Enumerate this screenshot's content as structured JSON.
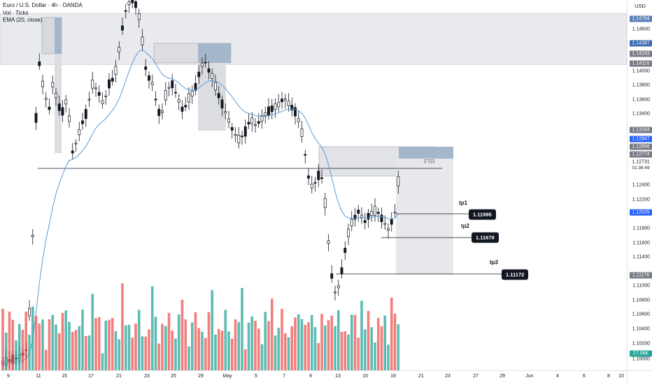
{
  "header": {
    "title": "Euro / U.S. Dollar · 4h · OANDA",
    "indicator_vol": "Vol · Ticks",
    "indicator_ema": "EMA (20, close)"
  },
  "price_axis": {
    "currency": "USD",
    "labels": [
      "1.14600",
      "1.14000",
      "1.13800",
      "1.13600",
      "1.13400",
      "1.12400",
      "1.12200",
      "1.11800",
      "1.11600",
      "1.11400",
      "1.11000",
      "1.10800",
      "1.10600",
      "1.10400",
      "1.10200",
      "1.10000"
    ],
    "badges": [
      {
        "value": "1.14764",
        "color": "#5b7fb8"
      },
      {
        "value": "1.14397",
        "color": "#3d6eb4"
      },
      {
        "value": "1.14243",
        "color": "#787b86"
      },
      {
        "value": "1.14110",
        "color": "#787b86"
      },
      {
        "value": "1.13164",
        "color": "#787b86"
      },
      {
        "value": "1.12947",
        "color": "#2962ff"
      },
      {
        "value": "1.12856",
        "color": "#787b86"
      },
      {
        "value": "1.12774",
        "color": "#787b86"
      },
      {
        "value": "1.12025",
        "color": "#2962ff"
      },
      {
        "value": "1.11176",
        "color": "#787b86"
      },
      {
        "value": "27.06K",
        "color": "#26a69a"
      }
    ],
    "current_price": "1.12731",
    "countdown": "01:36:49"
  },
  "time_axis": {
    "labels": [
      "9",
      "11",
      "15",
      "17",
      "21",
      "23",
      "25",
      "29",
      "May",
      "5",
      "7",
      "9",
      "13",
      "15",
      "19",
      "21",
      "23",
      "27",
      "29",
      "Jun",
      "4",
      "6",
      "8",
      "10"
    ]
  },
  "annotations": {
    "ftr": "FTR",
    "tp1": "tp1",
    "tp2": "tp2",
    "tp3": "tp3",
    "tp1_value": "1.11995",
    "tp2_value": "1.11679",
    "tp3_value": "1.11172"
  },
  "colors": {
    "bull_volume": "#26a69a",
    "bear_volume": "#ef5350",
    "candle": "#131722",
    "ema": "#5b9bd5",
    "zone_grey": "#d1d4dc",
    "zone_blue": "#7c9ab5"
  },
  "chart_data": {
    "type": "candlestick",
    "symbol": "EURUSD",
    "timeframe": "4h",
    "ylim": [
      1.1,
      1.15
    ],
    "keypoints": [
      {
        "x": "Apr 9",
        "y": 1.1
      },
      {
        "x": "Apr 10",
        "y": 1.105
      },
      {
        "x": "Apr 11",
        "y": 1.138
      },
      {
        "x": "Apr 14",
        "y": 1.133
      },
      {
        "x": "Apr 16",
        "y": 1.129
      },
      {
        "x": "Apr 21",
        "y": 1.156
      },
      {
        "x": "Apr 22",
        "y": 1.143
      },
      {
        "x": "Apr 23",
        "y": 1.134
      },
      {
        "x": "Apr 29",
        "y": 1.142
      },
      {
        "x": "Apr 30",
        "y": 1.134
      },
      {
        "x": "May 2",
        "y": 1.13
      },
      {
        "x": "May 6",
        "y": 1.137
      },
      {
        "x": "May 8",
        "y": 1.13
      },
      {
        "x": "May 9",
        "y": 1.124
      },
      {
        "x": "May 12",
        "y": 1.108
      },
      {
        "x": "May 14",
        "y": 1.121
      },
      {
        "x": "May 16",
        "y": 1.118
      },
      {
        "x": "May 19",
        "y": 1.127
      }
    ],
    "levels": [
      {
        "name": "tp1",
        "value": 1.11995
      },
      {
        "name": "tp2",
        "value": 1.11679
      },
      {
        "name": "tp3",
        "value": 1.11172
      }
    ]
  }
}
